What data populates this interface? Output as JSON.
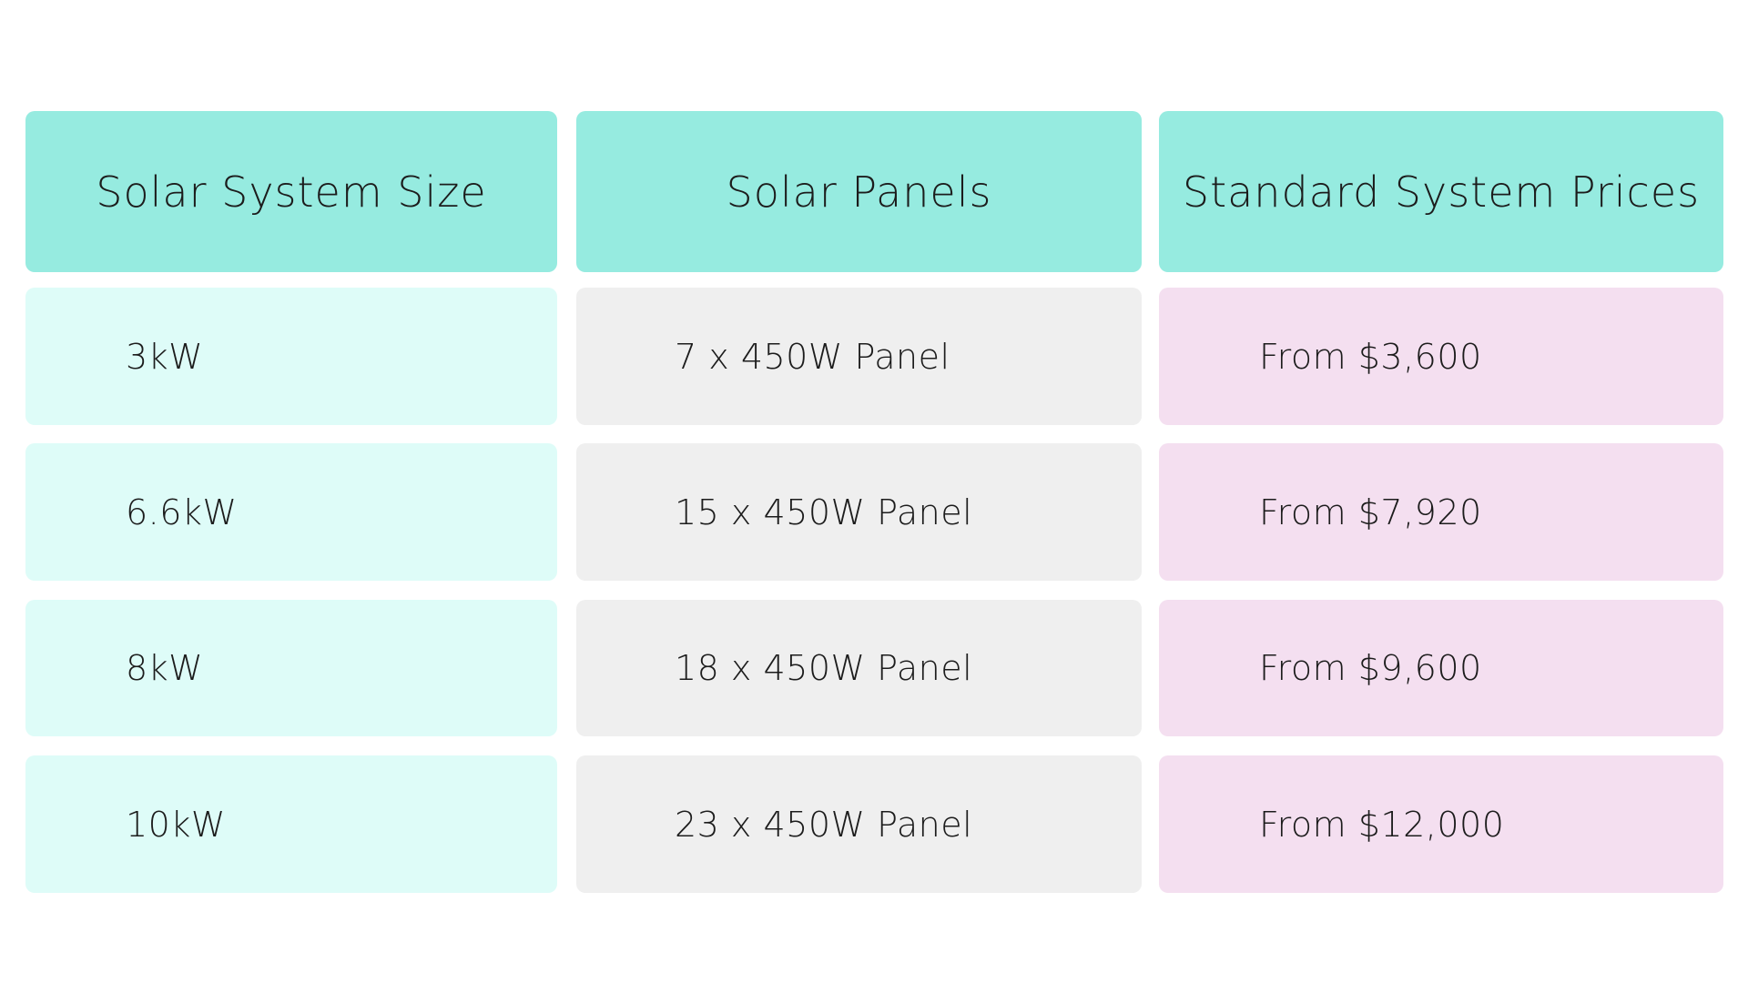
{
  "table": {
    "headers": [
      "Solar System Size",
      "Solar Panels",
      "Standard System Prices"
    ],
    "rows": [
      [
        "3kW",
        "7 x 450W Panel",
        "From $3,600"
      ],
      [
        "6.6kW",
        "15 x 450W Panel",
        "From $7,920"
      ],
      [
        "8kW",
        "18 x 450W Panel",
        "From $9,600"
      ],
      [
        "10kW",
        "23 x 450W Panel",
        "From $12,000"
      ]
    ]
  }
}
